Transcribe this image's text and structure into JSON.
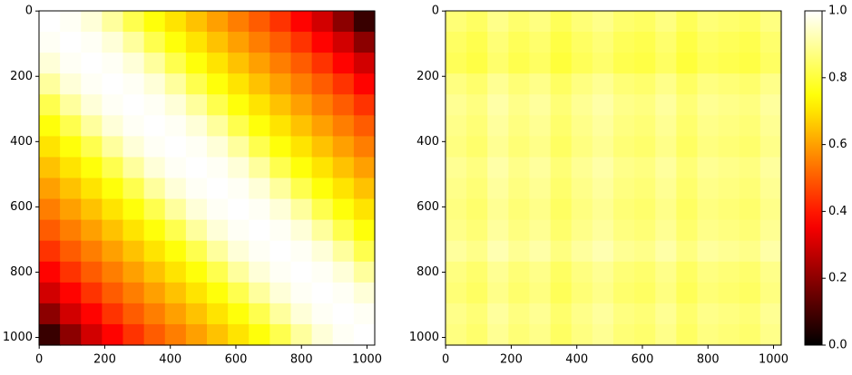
{
  "chart_data": [
    {
      "type": "heatmap",
      "colormap": "hot",
      "vlim": [
        0,
        1
      ],
      "xlim": [
        -0.5,
        1023.5
      ],
      "ylim": [
        1023.5,
        -0.5
      ],
      "xticks": [
        0,
        200,
        400,
        600,
        800,
        1000
      ],
      "yticks": [
        0,
        200,
        400,
        600,
        800,
        1000
      ],
      "matrix": [
        [
          1.0,
          0.99,
          0.96,
          0.9,
          0.82,
          0.75,
          0.7,
          0.65,
          0.6,
          0.55,
          0.5,
          0.44,
          0.37,
          0.3,
          0.2,
          0.08
        ],
        [
          0.99,
          1.0,
          0.99,
          0.96,
          0.9,
          0.82,
          0.75,
          0.7,
          0.65,
          0.6,
          0.55,
          0.5,
          0.44,
          0.37,
          0.3,
          0.2
        ],
        [
          0.96,
          0.99,
          1.0,
          0.99,
          0.96,
          0.9,
          0.82,
          0.75,
          0.7,
          0.65,
          0.6,
          0.55,
          0.5,
          0.44,
          0.37,
          0.3
        ],
        [
          0.9,
          0.96,
          0.99,
          1.0,
          0.99,
          0.96,
          0.9,
          0.82,
          0.75,
          0.7,
          0.65,
          0.6,
          0.55,
          0.5,
          0.44,
          0.37
        ],
        [
          0.82,
          0.9,
          0.96,
          0.99,
          1.0,
          0.99,
          0.96,
          0.9,
          0.82,
          0.75,
          0.7,
          0.65,
          0.6,
          0.55,
          0.5,
          0.44
        ],
        [
          0.75,
          0.82,
          0.9,
          0.96,
          0.99,
          1.0,
          0.99,
          0.96,
          0.9,
          0.82,
          0.75,
          0.7,
          0.65,
          0.6,
          0.55,
          0.5
        ],
        [
          0.7,
          0.75,
          0.82,
          0.9,
          0.96,
          0.99,
          1.0,
          0.99,
          0.96,
          0.9,
          0.82,
          0.75,
          0.7,
          0.65,
          0.6,
          0.55
        ],
        [
          0.65,
          0.7,
          0.75,
          0.82,
          0.9,
          0.96,
          0.99,
          1.0,
          0.99,
          0.96,
          0.9,
          0.82,
          0.75,
          0.7,
          0.65,
          0.6
        ],
        [
          0.6,
          0.65,
          0.7,
          0.75,
          0.82,
          0.9,
          0.96,
          0.99,
          1.0,
          0.99,
          0.96,
          0.9,
          0.82,
          0.75,
          0.7,
          0.65
        ],
        [
          0.55,
          0.6,
          0.65,
          0.7,
          0.75,
          0.82,
          0.9,
          0.96,
          0.99,
          1.0,
          0.99,
          0.96,
          0.9,
          0.82,
          0.75,
          0.7
        ],
        [
          0.5,
          0.55,
          0.6,
          0.65,
          0.7,
          0.75,
          0.82,
          0.9,
          0.96,
          0.99,
          1.0,
          0.99,
          0.96,
          0.9,
          0.82,
          0.75
        ],
        [
          0.44,
          0.5,
          0.55,
          0.6,
          0.65,
          0.7,
          0.75,
          0.82,
          0.9,
          0.96,
          0.99,
          1.0,
          0.99,
          0.96,
          0.9,
          0.82
        ],
        [
          0.37,
          0.44,
          0.5,
          0.55,
          0.6,
          0.65,
          0.7,
          0.75,
          0.82,
          0.9,
          0.96,
          0.99,
          1.0,
          0.99,
          0.96,
          0.9
        ],
        [
          0.3,
          0.37,
          0.44,
          0.5,
          0.55,
          0.6,
          0.65,
          0.7,
          0.75,
          0.82,
          0.9,
          0.96,
          0.99,
          1.0,
          0.99,
          0.96
        ],
        [
          0.2,
          0.3,
          0.37,
          0.44,
          0.5,
          0.55,
          0.6,
          0.65,
          0.7,
          0.75,
          0.82,
          0.9,
          0.96,
          0.99,
          1.0,
          0.99
        ],
        [
          0.08,
          0.2,
          0.3,
          0.37,
          0.44,
          0.5,
          0.55,
          0.6,
          0.65,
          0.7,
          0.75,
          0.82,
          0.9,
          0.96,
          0.99,
          1.0
        ]
      ]
    },
    {
      "type": "heatmap",
      "colormap": "hot",
      "vlim": [
        0,
        1
      ],
      "xlim": [
        -0.5,
        1023.5
      ],
      "ylim": [
        1023.5,
        -0.5
      ],
      "xticks": [
        0,
        200,
        400,
        600,
        800,
        1000
      ],
      "yticks": [
        0,
        200,
        400,
        600,
        800,
        1000
      ],
      "matrix": [
        [
          0.86,
          0.84,
          0.88,
          0.85,
          0.87,
          0.83,
          0.86,
          0.88,
          0.85,
          0.84,
          0.87,
          0.83,
          0.86,
          0.85,
          0.84,
          0.87
        ],
        [
          0.84,
          0.82,
          0.86,
          0.83,
          0.85,
          0.81,
          0.84,
          0.86,
          0.83,
          0.82,
          0.85,
          0.81,
          0.84,
          0.83,
          0.82,
          0.85
        ],
        [
          0.83,
          0.81,
          0.85,
          0.82,
          0.84,
          0.8,
          0.83,
          0.85,
          0.82,
          0.81,
          0.84,
          0.8,
          0.83,
          0.82,
          0.81,
          0.84
        ],
        [
          0.87,
          0.85,
          0.89,
          0.86,
          0.88,
          0.84,
          0.87,
          0.89,
          0.86,
          0.85,
          0.88,
          0.84,
          0.87,
          0.86,
          0.85,
          0.88
        ],
        [
          0.89,
          0.87,
          0.91,
          0.88,
          0.9,
          0.86,
          0.89,
          0.91,
          0.88,
          0.87,
          0.9,
          0.86,
          0.89,
          0.88,
          0.87,
          0.9
        ],
        [
          0.88,
          0.86,
          0.9,
          0.87,
          0.89,
          0.85,
          0.88,
          0.9,
          0.87,
          0.86,
          0.89,
          0.85,
          0.88,
          0.87,
          0.86,
          0.89
        ],
        [
          0.87,
          0.85,
          0.89,
          0.86,
          0.88,
          0.84,
          0.87,
          0.89,
          0.86,
          0.85,
          0.88,
          0.84,
          0.87,
          0.86,
          0.85,
          0.88
        ],
        [
          0.89,
          0.87,
          0.91,
          0.88,
          0.9,
          0.86,
          0.89,
          0.91,
          0.88,
          0.87,
          0.9,
          0.86,
          0.89,
          0.88,
          0.87,
          0.9
        ],
        [
          0.88,
          0.86,
          0.9,
          0.87,
          0.89,
          0.85,
          0.88,
          0.9,
          0.87,
          0.86,
          0.89,
          0.85,
          0.88,
          0.87,
          0.86,
          0.89
        ],
        [
          0.87,
          0.85,
          0.89,
          0.86,
          0.88,
          0.84,
          0.87,
          0.89,
          0.86,
          0.85,
          0.88,
          0.84,
          0.87,
          0.86,
          0.85,
          0.88
        ],
        [
          0.88,
          0.86,
          0.9,
          0.87,
          0.89,
          0.85,
          0.88,
          0.9,
          0.87,
          0.86,
          0.89,
          0.85,
          0.88,
          0.87,
          0.86,
          0.89
        ],
        [
          0.9,
          0.88,
          0.92,
          0.89,
          0.91,
          0.87,
          0.9,
          0.92,
          0.89,
          0.88,
          0.91,
          0.87,
          0.9,
          0.89,
          0.88,
          0.91
        ],
        [
          0.87,
          0.85,
          0.89,
          0.86,
          0.88,
          0.84,
          0.87,
          0.89,
          0.86,
          0.85,
          0.88,
          0.84,
          0.87,
          0.86,
          0.85,
          0.88
        ],
        [
          0.86,
          0.84,
          0.88,
          0.85,
          0.87,
          0.83,
          0.86,
          0.88,
          0.85,
          0.84,
          0.87,
          0.83,
          0.86,
          0.85,
          0.84,
          0.87
        ],
        [
          0.88,
          0.86,
          0.9,
          0.87,
          0.89,
          0.85,
          0.88,
          0.9,
          0.87,
          0.86,
          0.89,
          0.85,
          0.88,
          0.87,
          0.86,
          0.89
        ],
        [
          0.87,
          0.85,
          0.89,
          0.86,
          0.88,
          0.84,
          0.87,
          0.89,
          0.86,
          0.85,
          0.88,
          0.84,
          0.87,
          0.86,
          0.85,
          0.88
        ]
      ],
      "colorbar": {
        "lim": [
          0,
          1
        ],
        "ticks": [
          {
            "value": 0,
            "label": "0.0"
          },
          {
            "value": 0.2,
            "label": "0.2"
          },
          {
            "value": 0.4,
            "label": "0.4"
          },
          {
            "value": 0.6,
            "label": "0.6"
          },
          {
            "value": 0.8,
            "label": "0.8"
          },
          {
            "value": 1,
            "label": "1.0"
          }
        ]
      }
    }
  ]
}
